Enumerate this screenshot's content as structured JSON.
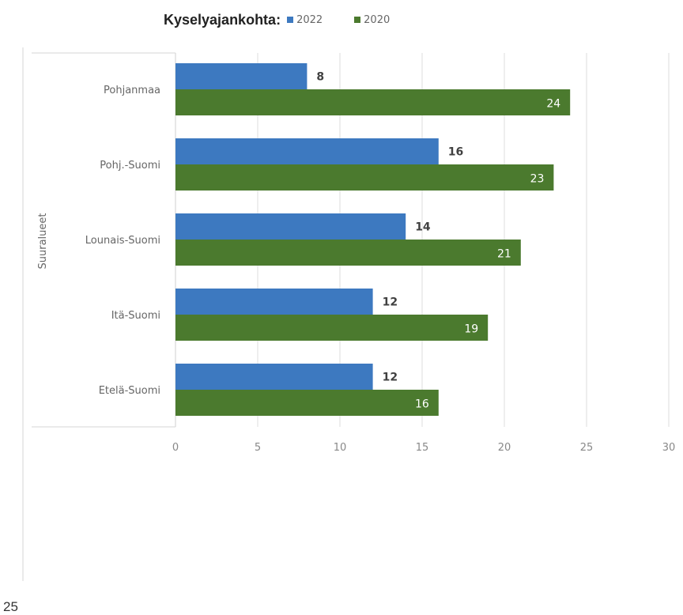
{
  "legend": {
    "title": "Kyselyajankohta:"
  },
  "page_number": "25",
  "chart_data": {
    "type": "bar",
    "orientation": "horizontal",
    "ylabel": "Suuralueet",
    "xlabel": "",
    "categories": [
      "Pohjanmaa",
      "Pohj.-Suomi",
      "Lounais-Suomi",
      "Itä-Suomi",
      "Etelä-Suomi"
    ],
    "series": [
      {
        "name": "2022",
        "color": "#3d79c0",
        "values": [
          8,
          16,
          14,
          12,
          12
        ]
      },
      {
        "name": "2020",
        "color": "#4b7a2e",
        "values": [
          24,
          23,
          21,
          19,
          16
        ]
      }
    ],
    "xlim": [
      0,
      30
    ],
    "xticks": [
      0,
      5,
      10,
      15,
      20,
      25,
      30
    ],
    "grid": true,
    "legend_position": "top"
  }
}
